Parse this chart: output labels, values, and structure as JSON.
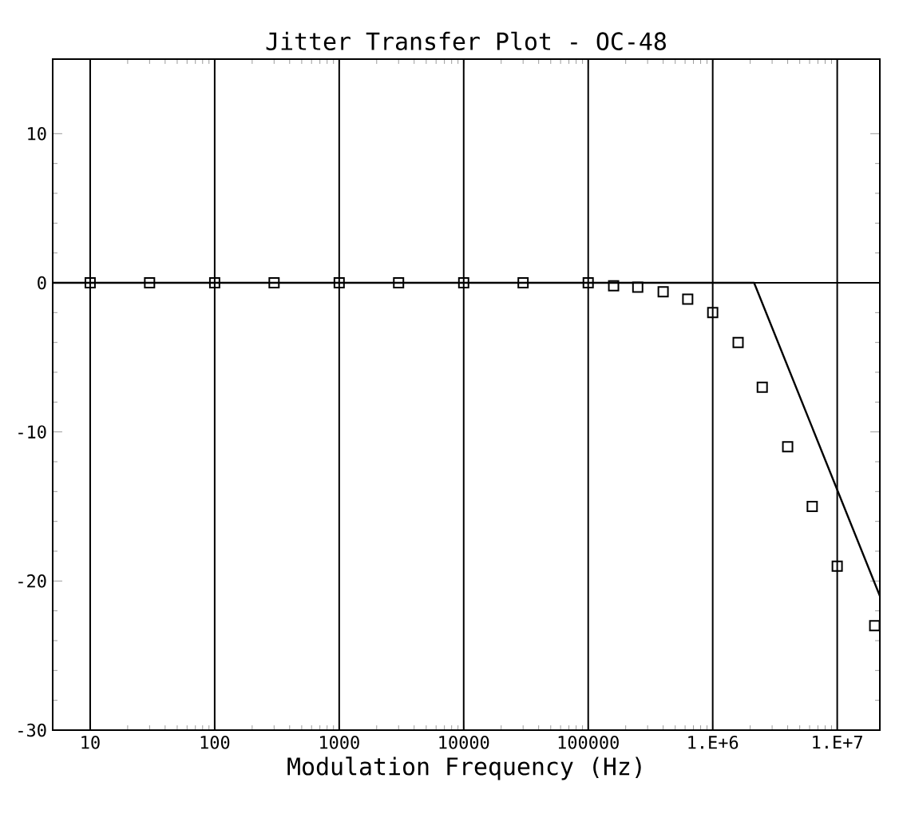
{
  "chart_data": {
    "type": "line",
    "title": "Jitter Transfer Plot - OC-48",
    "xlabel": "Modulation Frequency (Hz)",
    "log": "x",
    "grid": "x",
    "xlim": [
      5,
      22000000
    ],
    "ylim": [
      -30,
      15
    ],
    "xticks": [
      10,
      100,
      1000,
      10000,
      100000,
      {
        "value": 1000000,
        "label": "1.E+6"
      },
      {
        "value": 10000000,
        "label": "1.E+7"
      }
    ],
    "yticks": [
      -30,
      -20,
      -10,
      0,
      10
    ],
    "ref_lines": [
      {
        "axis": "y",
        "value": 0
      }
    ],
    "series": [
      {
        "color": "#000000",
        "marker": "none",
        "line_style": "solid",
        "x": [
          5,
          2150000,
          22000000
        ],
        "values": [
          0,
          0,
          -21
        ]
      },
      {
        "type": "scatter",
        "color": "#000000",
        "marker": "square",
        "x": [
          10,
          30,
          100,
          300,
          1000,
          3000,
          10000,
          30000,
          100000,
          160000,
          250000,
          400000,
          630000,
          1000000,
          1600000,
          2500000,
          4000000,
          6300000,
          10000000,
          20000000
        ],
        "values": [
          0,
          0,
          0,
          0,
          0,
          0,
          0,
          0,
          0,
          -0.2,
          -0.3,
          -0.6,
          -1.1,
          -2,
          -4,
          -7,
          -11,
          -15,
          -19,
          -23
        ]
      }
    ]
  }
}
